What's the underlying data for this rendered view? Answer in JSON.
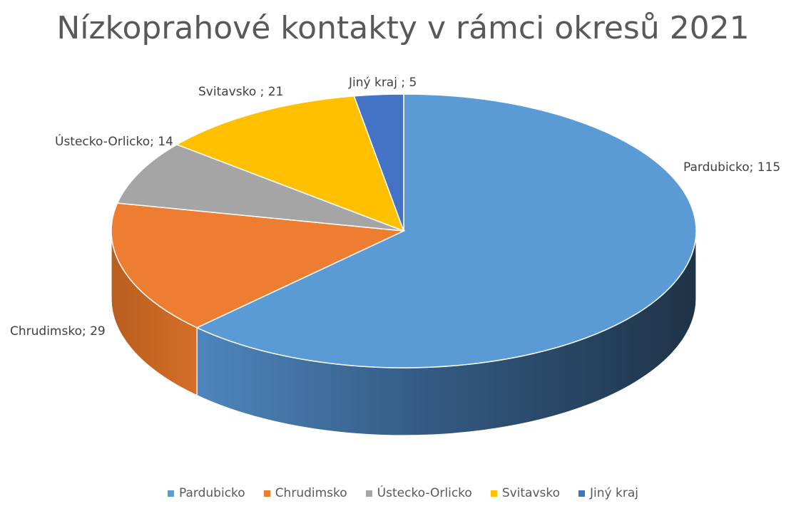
{
  "chart_data": {
    "type": "pie",
    "title": "Nízkoprahové kontakty v rámci okresů 2021",
    "categories": [
      "Pardubicko",
      "Chrudimsko",
      "Ústecko-Orlicko",
      "Svitavsko",
      "Jiný kraj"
    ],
    "values": [
      115,
      29,
      14,
      21,
      5
    ],
    "data_labels": [
      "Pardubicko; 115",
      "Chrudimsko; 29",
      "Ústecko-Orlicko; 14",
      "Svitavsko ; 21",
      "Jiný kraj ; 5"
    ],
    "colors": [
      "#5B9BD5",
      "#ED7D31",
      "#A5A5A5",
      "#FFC000",
      "#4472C4"
    ],
    "legend_position": "bottom",
    "style": "3d"
  }
}
